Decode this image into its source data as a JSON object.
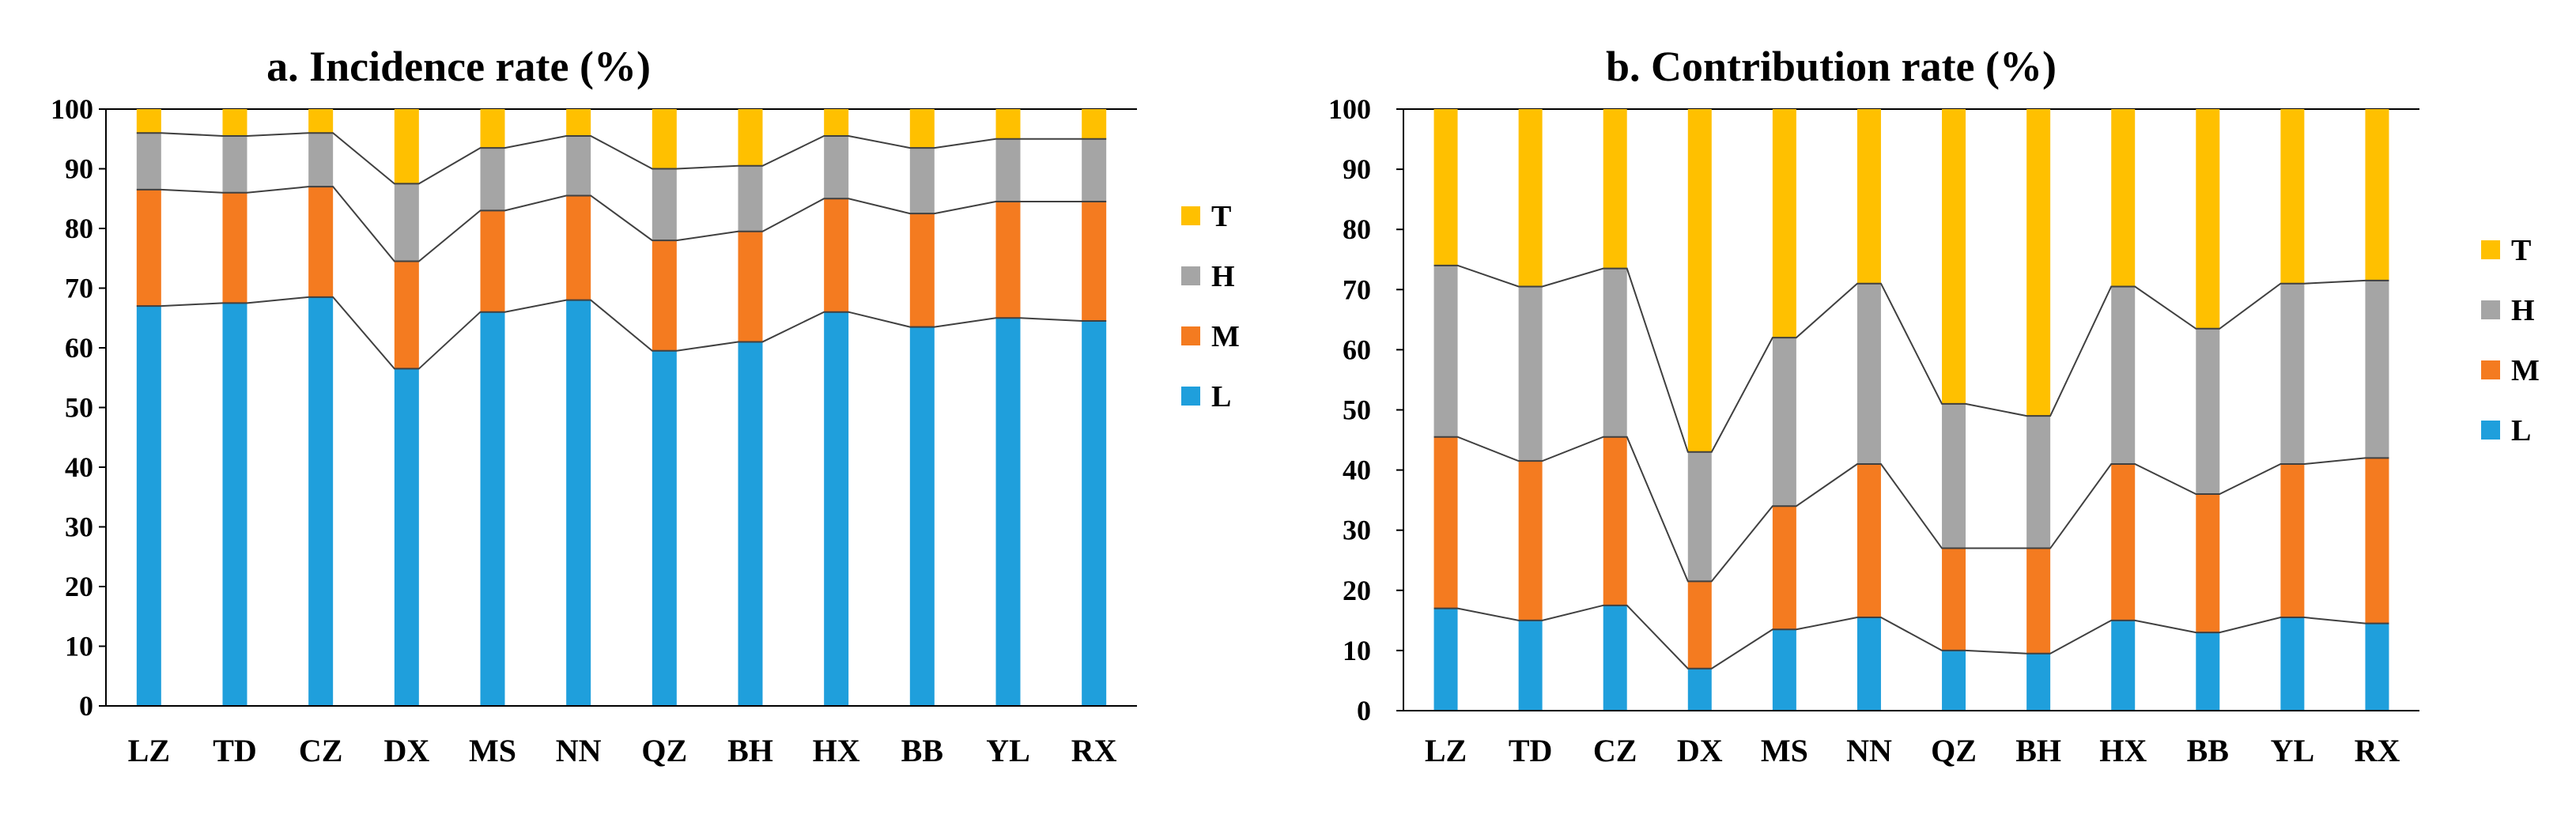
{
  "chart_data": [
    {
      "type": "bar",
      "stacked": true,
      "title": "a. Incidence rate (%)",
      "categories": [
        "LZ",
        "TD",
        "CZ",
        "DX",
        "MS",
        "NN",
        "QZ",
        "BH",
        "HX",
        "BB",
        "YL",
        "RX"
      ],
      "ylim": [
        0,
        100
      ],
      "yticks": [
        "0",
        "10",
        "20",
        "30",
        "40",
        "50",
        "60",
        "70",
        "80",
        "90",
        "100"
      ],
      "series": [
        {
          "name": "L",
          "color": "#1F9FDC",
          "values": [
            67,
            67.5,
            68.5,
            56.5,
            66,
            68,
            59.5,
            61,
            66,
            63.5,
            65,
            64.5
          ]
        },
        {
          "name": "M",
          "color": "#F47B20",
          "values": [
            19.5,
            18.5,
            18.5,
            18,
            17,
            17.5,
            18.5,
            18.5,
            19,
            19,
            19.5,
            20
          ]
        },
        {
          "name": "H",
          "color": "#A5A5A5",
          "values": [
            9.5,
            9.5,
            9,
            13,
            10.5,
            10,
            12,
            11,
            10.5,
            11,
            10.5,
            10.5
          ]
        },
        {
          "name": "T",
          "color": "#FFC000",
          "values": [
            4,
            4.5,
            4,
            12.5,
            6.5,
            4.5,
            10,
            9.5,
            4.5,
            6.5,
            5,
            5
          ]
        }
      ],
      "legend_order": [
        "T",
        "H",
        "M",
        "L"
      ]
    },
    {
      "type": "bar",
      "stacked": true,
      "title": "b. Contribution rate (%)",
      "categories": [
        "LZ",
        "TD",
        "CZ",
        "DX",
        "MS",
        "NN",
        "QZ",
        "BH",
        "HX",
        "BB",
        "YL",
        "RX"
      ],
      "ylim": [
        0,
        100
      ],
      "yticks": [
        "0",
        "10",
        "20",
        "30",
        "40",
        "50",
        "60",
        "70",
        "80",
        "90",
        "100"
      ],
      "series": [
        {
          "name": "L",
          "color": "#1F9FDC",
          "values": [
            17,
            15,
            17.5,
            7,
            13.5,
            15.5,
            10,
            9.5,
            15,
            13,
            15.5,
            14.5
          ]
        },
        {
          "name": "M",
          "color": "#F47B20",
          "values": [
            28.5,
            26.5,
            28,
            14.5,
            20.5,
            25.5,
            17,
            17.5,
            26,
            23,
            25.5,
            27.5
          ]
        },
        {
          "name": "H",
          "color": "#A5A5A5",
          "values": [
            28.5,
            29,
            28,
            21.5,
            28,
            30,
            24,
            22,
            29.5,
            27.5,
            30,
            29.5
          ]
        },
        {
          "name": "T",
          "color": "#FFC000",
          "values": [
            26,
            29.5,
            26.5,
            57,
            38,
            29,
            49,
            51,
            29.5,
            36.5,
            29,
            28.5
          ]
        }
      ],
      "legend_order": [
        "T",
        "H",
        "M",
        "L"
      ]
    }
  ]
}
